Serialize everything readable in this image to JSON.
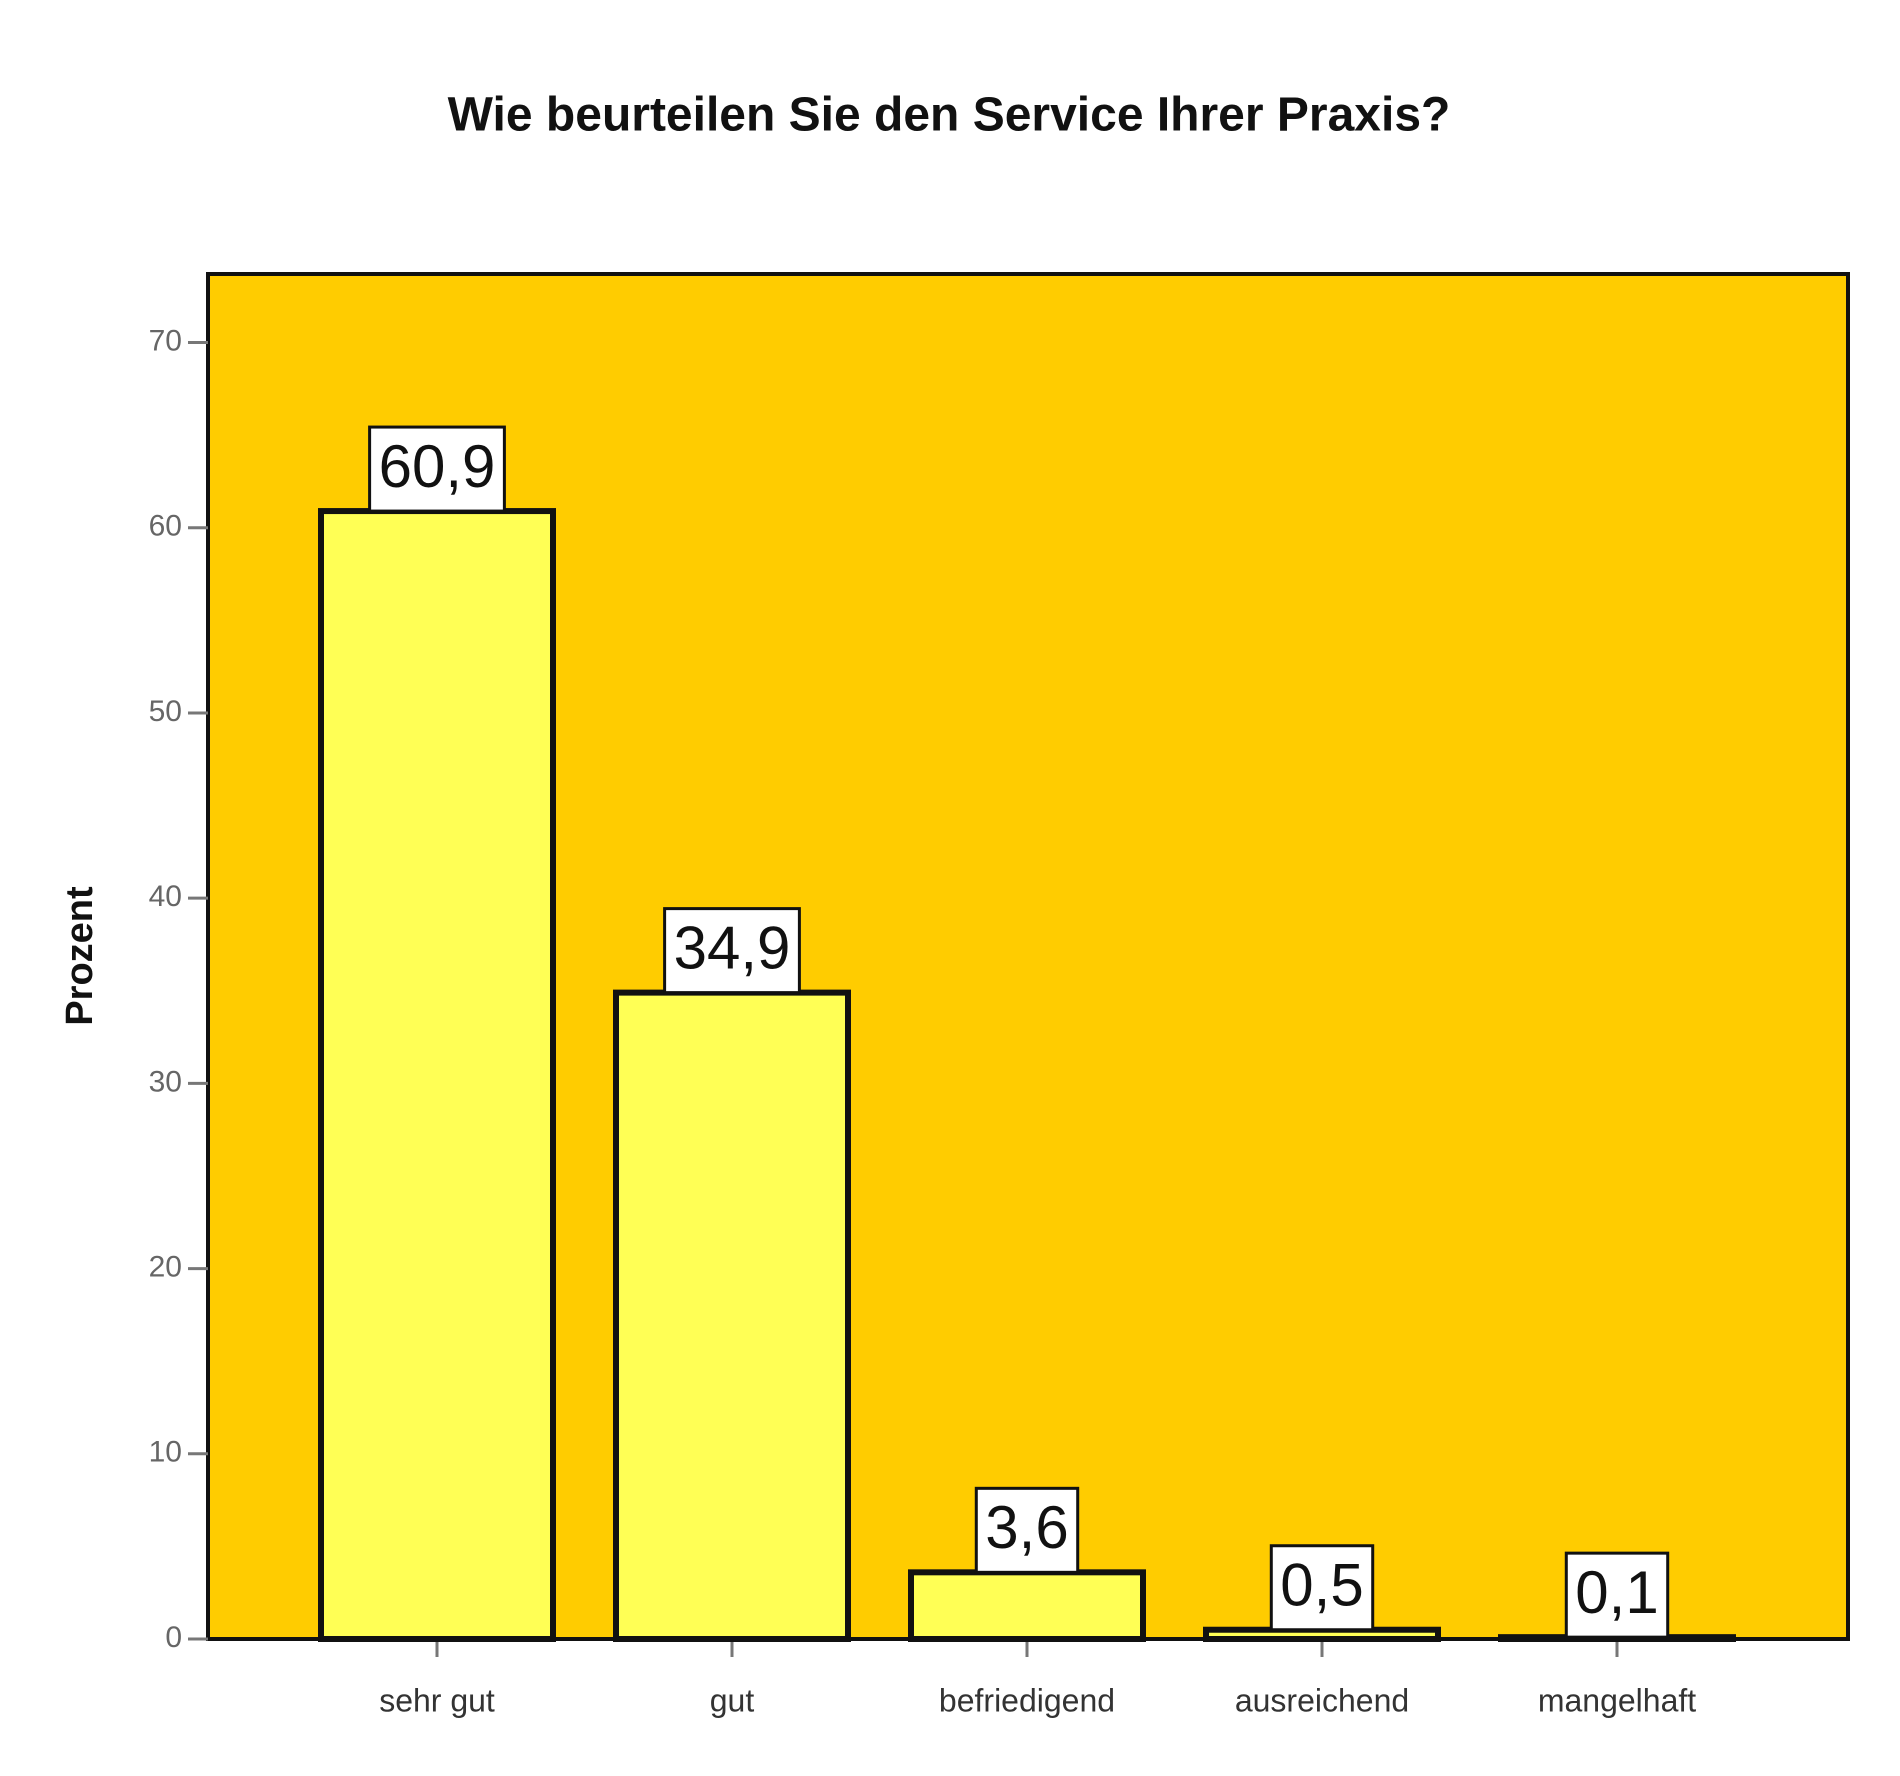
{
  "chart_data": {
    "type": "bar",
    "title": "Wie beurteilen Sie den Service Ihrer Praxis?",
    "y_label": "Prozent",
    "categories": [
      "sehr gut",
      "gut",
      "befriedigend",
      "ausreichend",
      "mangelhaft"
    ],
    "values": [
      60.9,
      34.9,
      3.6,
      0.5,
      0.1
    ],
    "value_labels": [
      "60,9",
      "34,9",
      "3,6",
      "0,5",
      "0,1"
    ],
    "color": "#ffff55",
    "background": "#ffcc00",
    "ylim": [
      0,
      73.7
    ],
    "yticks": [
      0,
      10,
      20,
      30,
      40,
      50,
      60,
      70
    ],
    "grid": false
  }
}
